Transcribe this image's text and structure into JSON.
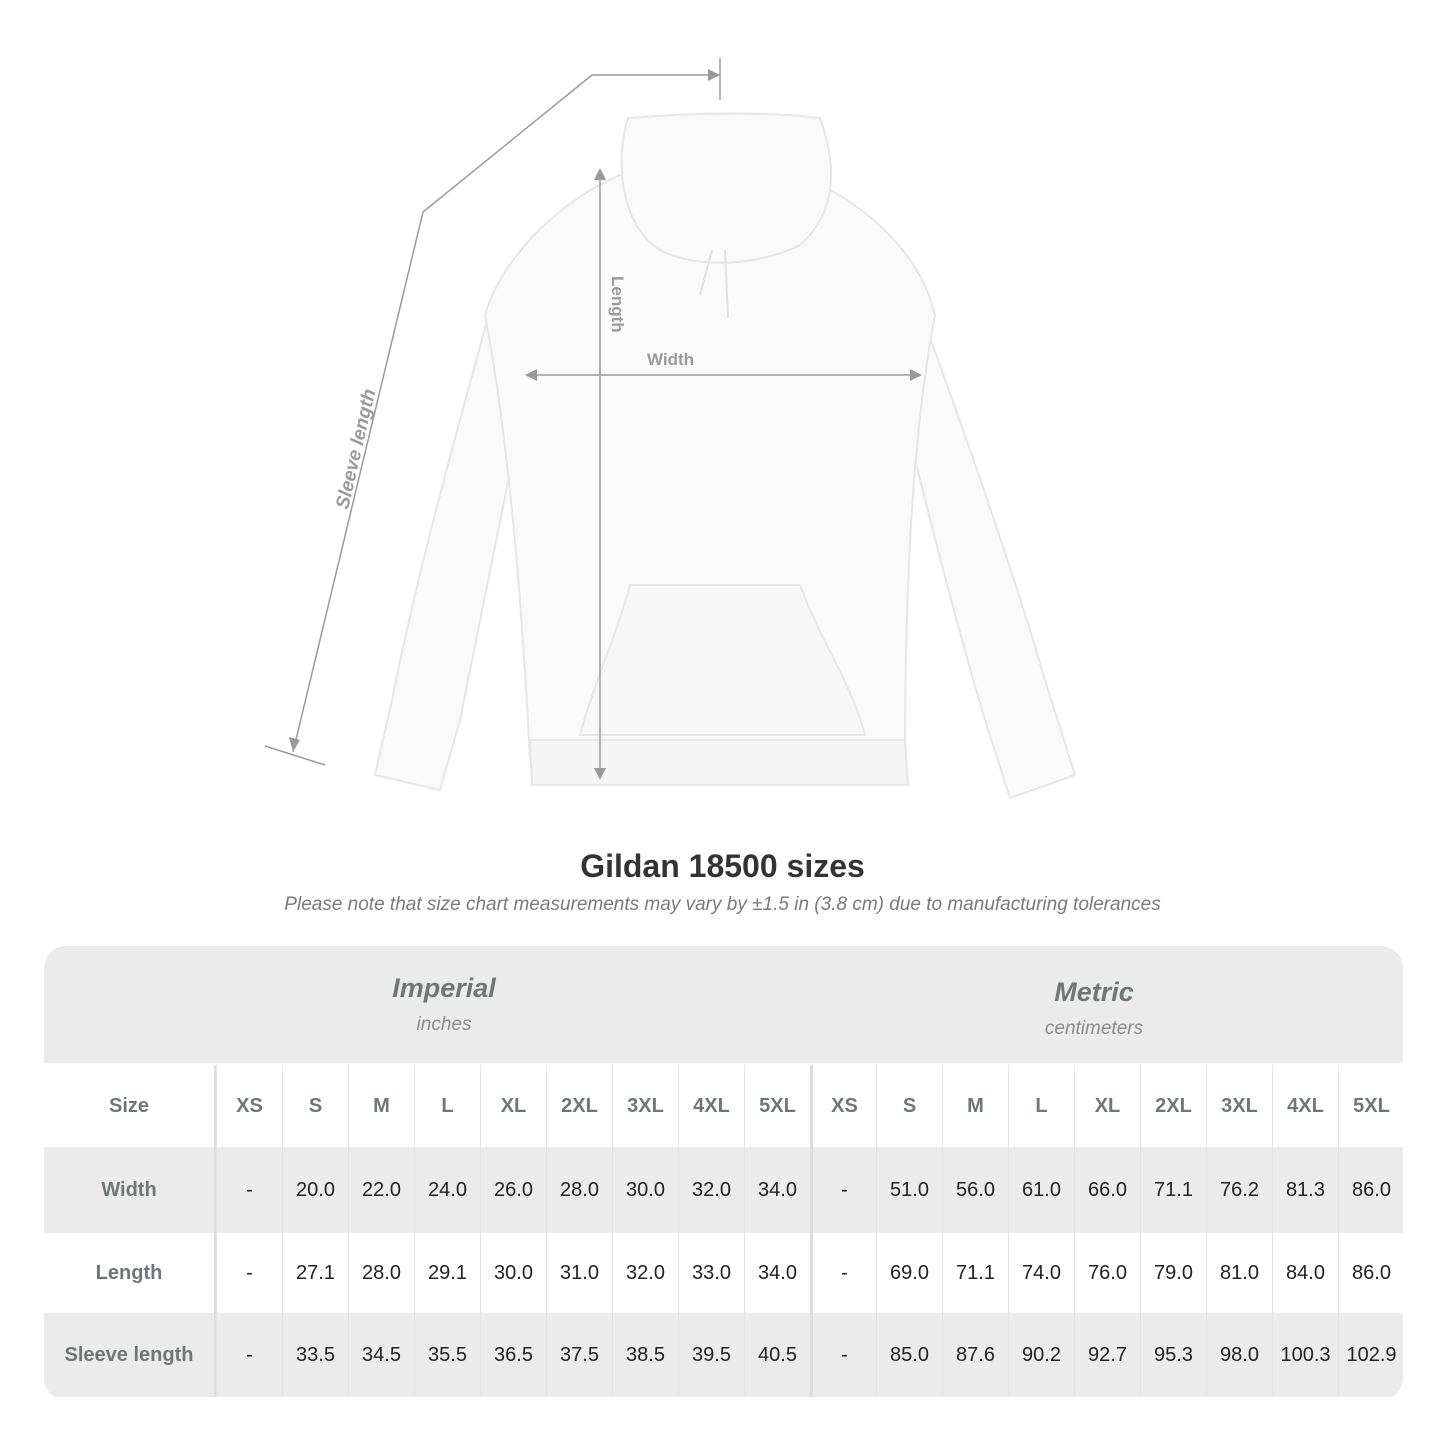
{
  "diagram": {
    "labels": {
      "sleeve_length": "Sleeve length",
      "length": "Length",
      "width": "Width"
    },
    "garment_color": "#fafafa",
    "measure_line_color": "#9a9a9a"
  },
  "title": "Gildan 18500 sizes",
  "subtitle": "Please note that size chart measurements may vary by ±1.5 in (3.8 cm) due to manufacturing tolerances",
  "table": {
    "imperial": {
      "name": "Imperial",
      "unit": "inches"
    },
    "metric": {
      "name": "Metric",
      "unit": "centimeters"
    },
    "size_label": "Size",
    "sizes": [
      "XS",
      "S",
      "M",
      "L",
      "XL",
      "2XL",
      "3XL",
      "4XL",
      "5XL"
    ],
    "rows": [
      {
        "label": "Width",
        "imperial": [
          "-",
          "20.0",
          "22.0",
          "24.0",
          "26.0",
          "28.0",
          "30.0",
          "32.0",
          "34.0"
        ],
        "metric": [
          "-",
          "51.0",
          "56.0",
          "61.0",
          "66.0",
          "71.1",
          "76.2",
          "81.3",
          "86.0"
        ]
      },
      {
        "label": "Length",
        "imperial": [
          "-",
          "27.1",
          "28.0",
          "29.1",
          "30.0",
          "31.0",
          "32.0",
          "33.0",
          "34.0"
        ],
        "metric": [
          "-",
          "69.0",
          "71.1",
          "74.0",
          "76.0",
          "79.0",
          "81.0",
          "84.0",
          "86.0"
        ]
      },
      {
        "label": "Sleeve length",
        "imperial": [
          "-",
          "33.5",
          "34.5",
          "35.5",
          "36.5",
          "37.5",
          "38.5",
          "39.5",
          "40.5"
        ],
        "metric": [
          "-",
          "85.0",
          "87.6",
          "90.2",
          "92.7",
          "95.3",
          "98.0",
          "100.3",
          "102.9"
        ]
      }
    ]
  }
}
